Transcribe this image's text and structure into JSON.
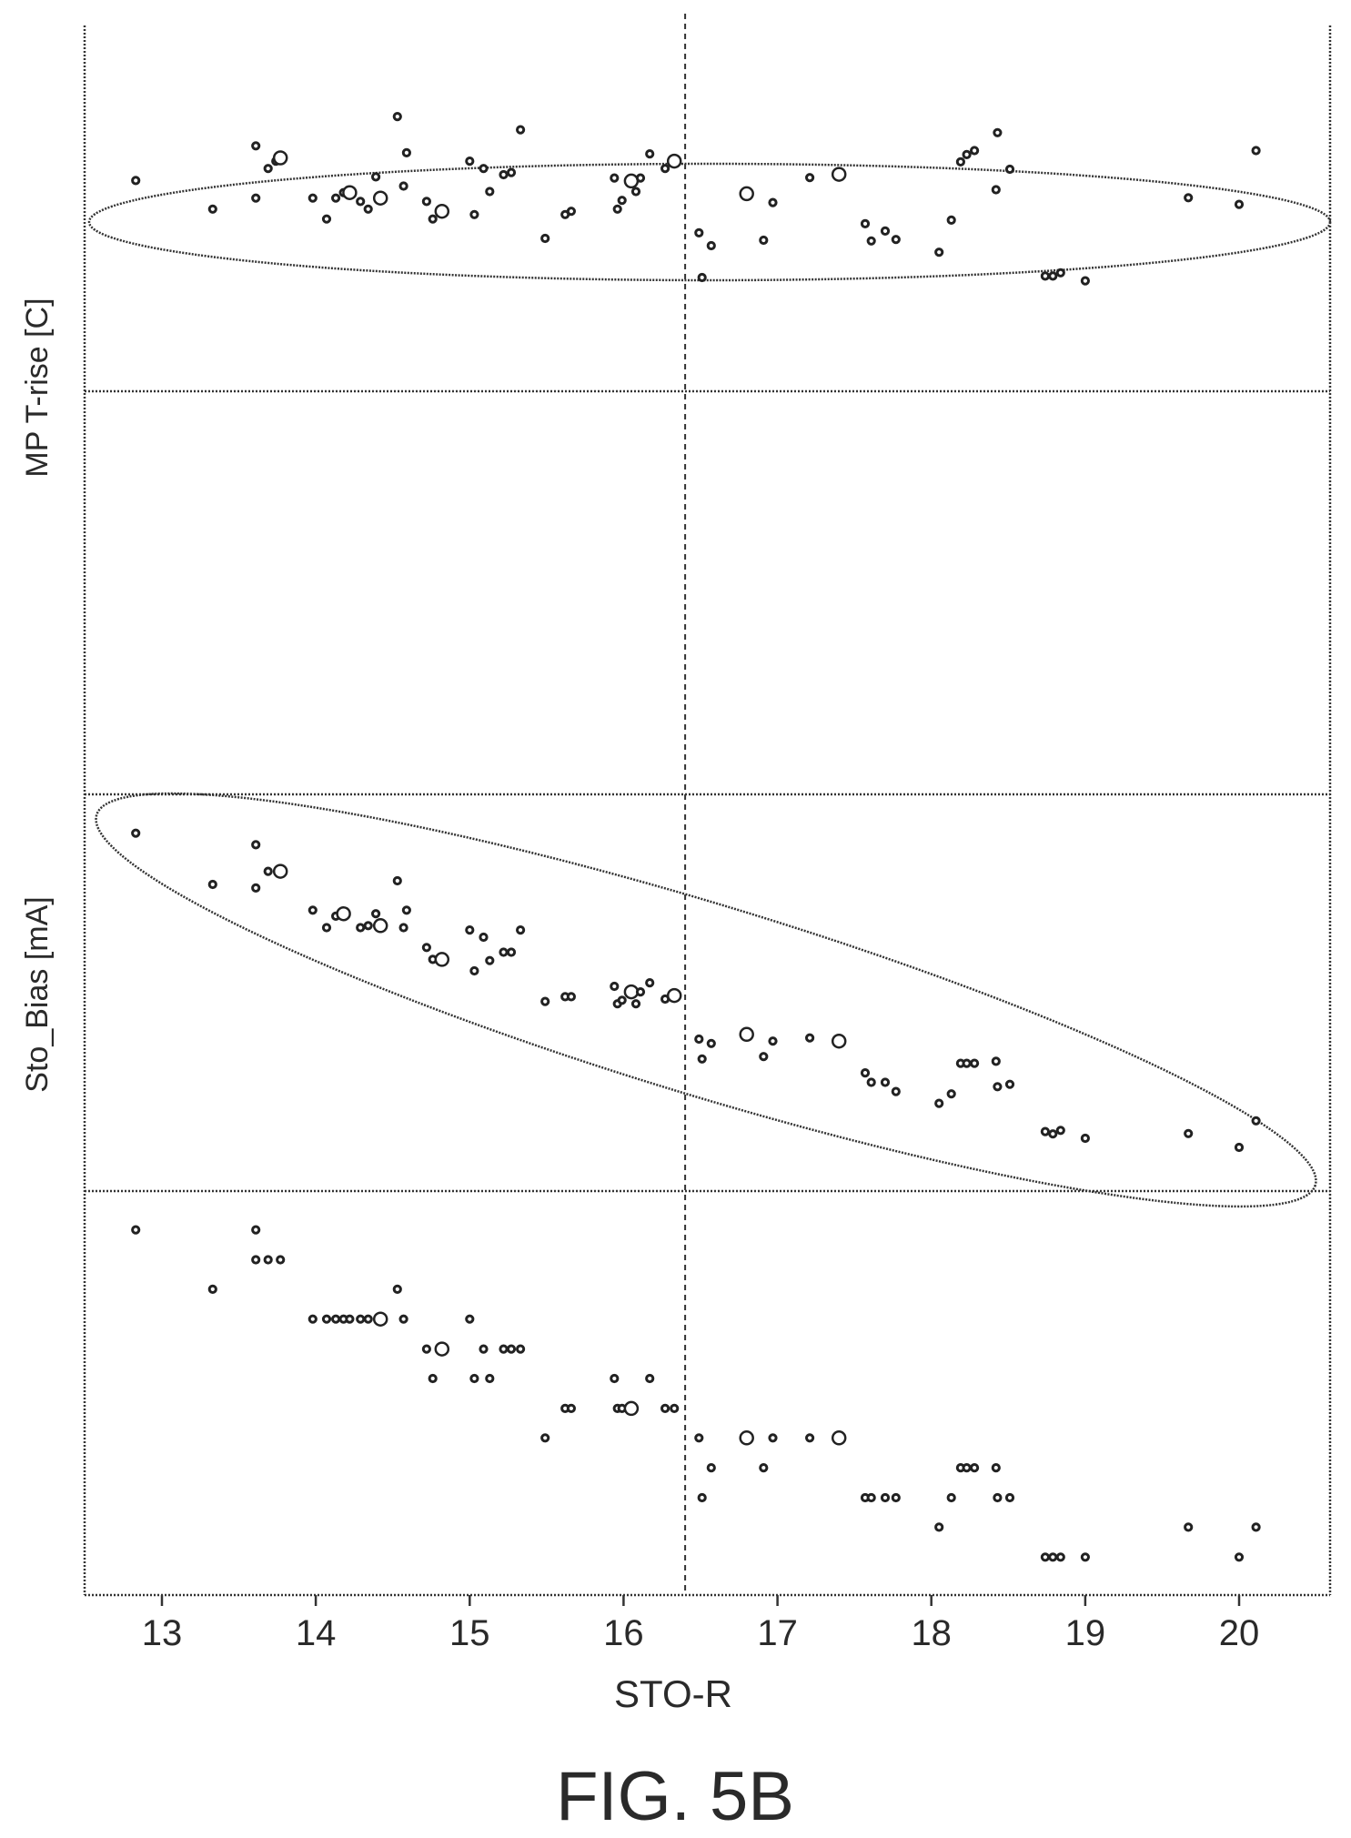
{
  "figure_label": "FIG. 5B",
  "chart_data": {
    "type": "scatter",
    "xlabel": "STO-R",
    "xlim": [
      12.5,
      20.6
    ],
    "xticks": [
      13,
      14,
      15,
      16,
      17,
      18,
      19,
      20
    ],
    "reference_line_x": 16.4,
    "panels": [
      {
        "id": "mp-trise",
        "ylabel": "MP T-rise [C]",
        "ylim": [
          0,
          1
        ],
        "points": [
          {
            "x": 12.83,
            "y": 0.576,
            "m": "s"
          },
          {
            "x": 13.33,
            "y": 0.498,
            "m": "s"
          },
          {
            "x": 13.61,
            "y": 0.671,
            "m": "s"
          },
          {
            "x": 13.61,
            "y": 0.528,
            "m": "s"
          },
          {
            "x": 13.69,
            "y": 0.609,
            "m": "s"
          },
          {
            "x": 13.74,
            "y": 0.629,
            "m": "s"
          },
          {
            "x": 13.77,
            "y": 0.638,
            "m": "b"
          },
          {
            "x": 13.98,
            "y": 0.528,
            "m": "s"
          },
          {
            "x": 14.07,
            "y": 0.471,
            "m": "s"
          },
          {
            "x": 14.13,
            "y": 0.528,
            "m": "s"
          },
          {
            "x": 14.18,
            "y": 0.543,
            "m": "s"
          },
          {
            "x": 14.22,
            "y": 0.543,
            "m": "b"
          },
          {
            "x": 14.29,
            "y": 0.519,
            "m": "s"
          },
          {
            "x": 14.34,
            "y": 0.498,
            "m": "s"
          },
          {
            "x": 14.39,
            "y": 0.586,
            "m": "s"
          },
          {
            "x": 14.42,
            "y": 0.528,
            "m": "b"
          },
          {
            "x": 14.53,
            "y": 0.751,
            "m": "s"
          },
          {
            "x": 14.57,
            "y": 0.561,
            "m": "s"
          },
          {
            "x": 14.59,
            "y": 0.652,
            "m": "s"
          },
          {
            "x": 14.72,
            "y": 0.519,
            "m": "s"
          },
          {
            "x": 14.76,
            "y": 0.471,
            "m": "s"
          },
          {
            "x": 14.82,
            "y": 0.492,
            "m": "b"
          },
          {
            "x": 15.0,
            "y": 0.629,
            "m": "s"
          },
          {
            "x": 15.03,
            "y": 0.483,
            "m": "s"
          },
          {
            "x": 15.09,
            "y": 0.609,
            "m": "s"
          },
          {
            "x": 15.13,
            "y": 0.546,
            "m": "s"
          },
          {
            "x": 15.22,
            "y": 0.592,
            "m": "s"
          },
          {
            "x": 15.27,
            "y": 0.598,
            "m": "s"
          },
          {
            "x": 15.33,
            "y": 0.715,
            "m": "s"
          },
          {
            "x": 15.49,
            "y": 0.418,
            "m": "s"
          },
          {
            "x": 15.62,
            "y": 0.483,
            "m": "s"
          },
          {
            "x": 15.66,
            "y": 0.492,
            "m": "s"
          },
          {
            "x": 15.94,
            "y": 0.583,
            "m": "s"
          },
          {
            "x": 15.96,
            "y": 0.498,
            "m": "s"
          },
          {
            "x": 15.99,
            "y": 0.522,
            "m": "s"
          },
          {
            "x": 16.05,
            "y": 0.575,
            "m": "b"
          },
          {
            "x": 16.08,
            "y": 0.546,
            "m": "s"
          },
          {
            "x": 16.11,
            "y": 0.583,
            "m": "s"
          },
          {
            "x": 16.17,
            "y": 0.649,
            "m": "s"
          },
          {
            "x": 16.27,
            "y": 0.609,
            "m": "s"
          },
          {
            "x": 16.33,
            "y": 0.629,
            "m": "b"
          },
          {
            "x": 16.49,
            "y": 0.433,
            "m": "s"
          },
          {
            "x": 16.51,
            "y": 0.311,
            "m": "s"
          },
          {
            "x": 16.57,
            "y": 0.398,
            "m": "s"
          },
          {
            "x": 16.8,
            "y": 0.54,
            "m": "b"
          },
          {
            "x": 16.91,
            "y": 0.413,
            "m": "s"
          },
          {
            "x": 16.97,
            "y": 0.516,
            "m": "s"
          },
          {
            "x": 17.21,
            "y": 0.584,
            "m": "s"
          },
          {
            "x": 17.4,
            "y": 0.593,
            "m": "b"
          },
          {
            "x": 17.57,
            "y": 0.458,
            "m": "s"
          },
          {
            "x": 17.61,
            "y": 0.411,
            "m": "s"
          },
          {
            "x": 17.7,
            "y": 0.438,
            "m": "s"
          },
          {
            "x": 17.77,
            "y": 0.415,
            "m": "s"
          },
          {
            "x": 18.05,
            "y": 0.38,
            "m": "s"
          },
          {
            "x": 18.13,
            "y": 0.468,
            "m": "s"
          },
          {
            "x": 18.19,
            "y": 0.627,
            "m": "s"
          },
          {
            "x": 18.23,
            "y": 0.647,
            "m": "s"
          },
          {
            "x": 18.28,
            "y": 0.658,
            "m": "s"
          },
          {
            "x": 18.42,
            "y": 0.551,
            "m": "s"
          },
          {
            "x": 18.43,
            "y": 0.707,
            "m": "s"
          },
          {
            "x": 18.51,
            "y": 0.607,
            "m": "s"
          },
          {
            "x": 18.74,
            "y": 0.315,
            "m": "s"
          },
          {
            "x": 18.79,
            "y": 0.315,
            "m": "s"
          },
          {
            "x": 18.84,
            "y": 0.324,
            "m": "s"
          },
          {
            "x": 19.0,
            "y": 0.302,
            "m": "s"
          },
          {
            "x": 19.67,
            "y": 0.529,
            "m": "s"
          },
          {
            "x": 20.0,
            "y": 0.511,
            "m": "s"
          },
          {
            "x": 20.11,
            "y": 0.658,
            "m": "s"
          }
        ]
      },
      {
        "id": "sto-bias",
        "ylabel": "Sto_Bias [mA]",
        "ylim": [
          0,
          1
        ],
        "points": [
          {
            "x": 12.83,
            "y": 0.902,
            "m": "s"
          },
          {
            "x": 13.33,
            "y": 0.773,
            "m": "s"
          },
          {
            "x": 13.61,
            "y": 0.873,
            "m": "s"
          },
          {
            "x": 13.61,
            "y": 0.764,
            "m": "s"
          },
          {
            "x": 13.69,
            "y": 0.806,
            "m": "s"
          },
          {
            "x": 13.77,
            "y": 0.806,
            "m": "b"
          },
          {
            "x": 13.98,
            "y": 0.708,
            "m": "s"
          },
          {
            "x": 14.07,
            "y": 0.664,
            "m": "s"
          },
          {
            "x": 14.13,
            "y": 0.693,
            "m": "s"
          },
          {
            "x": 14.18,
            "y": 0.699,
            "m": "b"
          },
          {
            "x": 14.29,
            "y": 0.664,
            "m": "s"
          },
          {
            "x": 14.34,
            "y": 0.669,
            "m": "s"
          },
          {
            "x": 14.39,
            "y": 0.699,
            "m": "s"
          },
          {
            "x": 14.42,
            "y": 0.669,
            "m": "b"
          },
          {
            "x": 14.53,
            "y": 0.782,
            "m": "s"
          },
          {
            "x": 14.57,
            "y": 0.664,
            "m": "s"
          },
          {
            "x": 14.59,
            "y": 0.708,
            "m": "s"
          },
          {
            "x": 14.72,
            "y": 0.614,
            "m": "s"
          },
          {
            "x": 14.76,
            "y": 0.584,
            "m": "s"
          },
          {
            "x": 14.82,
            "y": 0.584,
            "m": "b"
          },
          {
            "x": 15.0,
            "y": 0.658,
            "m": "s"
          },
          {
            "x": 15.03,
            "y": 0.555,
            "m": "s"
          },
          {
            "x": 15.09,
            "y": 0.64,
            "m": "s"
          },
          {
            "x": 15.13,
            "y": 0.581,
            "m": "s"
          },
          {
            "x": 15.22,
            "y": 0.602,
            "m": "s"
          },
          {
            "x": 15.27,
            "y": 0.602,
            "m": "s"
          },
          {
            "x": 15.33,
            "y": 0.658,
            "m": "s"
          },
          {
            "x": 15.49,
            "y": 0.478,
            "m": "s"
          },
          {
            "x": 15.62,
            "y": 0.49,
            "m": "s"
          },
          {
            "x": 15.66,
            "y": 0.49,
            "m": "s"
          },
          {
            "x": 15.94,
            "y": 0.516,
            "m": "s"
          },
          {
            "x": 15.96,
            "y": 0.472,
            "m": "s"
          },
          {
            "x": 15.99,
            "y": 0.481,
            "m": "s"
          },
          {
            "x": 16.05,
            "y": 0.502,
            "m": "b"
          },
          {
            "x": 16.08,
            "y": 0.472,
            "m": "s"
          },
          {
            "x": 16.11,
            "y": 0.502,
            "m": "s"
          },
          {
            "x": 16.17,
            "y": 0.525,
            "m": "s"
          },
          {
            "x": 16.27,
            "y": 0.484,
            "m": "s"
          },
          {
            "x": 16.33,
            "y": 0.493,
            "m": "b"
          },
          {
            "x": 16.49,
            "y": 0.383,
            "m": "s"
          },
          {
            "x": 16.51,
            "y": 0.333,
            "m": "s"
          },
          {
            "x": 16.57,
            "y": 0.372,
            "m": "s"
          },
          {
            "x": 16.8,
            "y": 0.395,
            "m": "b"
          },
          {
            "x": 16.91,
            "y": 0.339,
            "m": "s"
          },
          {
            "x": 16.97,
            "y": 0.378,
            "m": "s"
          },
          {
            "x": 17.21,
            "y": 0.386,
            "m": "s"
          },
          {
            "x": 17.4,
            "y": 0.378,
            "m": "b"
          },
          {
            "x": 17.57,
            "y": 0.298,
            "m": "s"
          },
          {
            "x": 17.61,
            "y": 0.274,
            "m": "s"
          },
          {
            "x": 17.7,
            "y": 0.274,
            "m": "s"
          },
          {
            "x": 17.77,
            "y": 0.251,
            "m": "s"
          },
          {
            "x": 18.05,
            "y": 0.221,
            "m": "s"
          },
          {
            "x": 18.13,
            "y": 0.245,
            "m": "s"
          },
          {
            "x": 18.19,
            "y": 0.322,
            "m": "s"
          },
          {
            "x": 18.23,
            "y": 0.322,
            "m": "s"
          },
          {
            "x": 18.28,
            "y": 0.322,
            "m": "s"
          },
          {
            "x": 18.42,
            "y": 0.327,
            "m": "s"
          },
          {
            "x": 18.43,
            "y": 0.263,
            "m": "s"
          },
          {
            "x": 18.51,
            "y": 0.269,
            "m": "s"
          },
          {
            "x": 18.74,
            "y": 0.15,
            "m": "s"
          },
          {
            "x": 18.79,
            "y": 0.144,
            "m": "s"
          },
          {
            "x": 18.84,
            "y": 0.153,
            "m": "s"
          },
          {
            "x": 19.0,
            "y": 0.133,
            "m": "s"
          },
          {
            "x": 19.67,
            "y": 0.145,
            "m": "s"
          },
          {
            "x": 20.0,
            "y": 0.11,
            "m": "s"
          },
          {
            "x": 20.11,
            "y": 0.177,
            "m": "s"
          }
        ]
      },
      {
        "id": "bottom",
        "ylabel": "",
        "ylim": [
          0,
          1
        ],
        "points": [
          {
            "x": 12.83,
            "y": 0.904,
            "m": "s"
          },
          {
            "x": 13.33,
            "y": 0.757,
            "m": "s"
          },
          {
            "x": 13.61,
            "y": 0.904,
            "m": "s"
          },
          {
            "x": 13.61,
            "y": 0.83,
            "m": "s"
          },
          {
            "x": 13.69,
            "y": 0.83,
            "m": "s"
          },
          {
            "x": 13.77,
            "y": 0.83,
            "m": "s"
          },
          {
            "x": 13.98,
            "y": 0.683,
            "m": "s"
          },
          {
            "x": 14.07,
            "y": 0.683,
            "m": "s"
          },
          {
            "x": 14.13,
            "y": 0.683,
            "m": "s"
          },
          {
            "x": 14.18,
            "y": 0.683,
            "m": "s"
          },
          {
            "x": 14.22,
            "y": 0.683,
            "m": "s"
          },
          {
            "x": 14.29,
            "y": 0.683,
            "m": "s"
          },
          {
            "x": 14.34,
            "y": 0.683,
            "m": "s"
          },
          {
            "x": 14.42,
            "y": 0.683,
            "m": "b"
          },
          {
            "x": 14.53,
            "y": 0.757,
            "m": "s"
          },
          {
            "x": 14.57,
            "y": 0.683,
            "m": "s"
          },
          {
            "x": 14.72,
            "y": 0.609,
            "m": "s"
          },
          {
            "x": 14.76,
            "y": 0.536,
            "m": "s"
          },
          {
            "x": 14.82,
            "y": 0.609,
            "m": "b"
          },
          {
            "x": 15.0,
            "y": 0.683,
            "m": "s"
          },
          {
            "x": 15.03,
            "y": 0.536,
            "m": "s"
          },
          {
            "x": 15.09,
            "y": 0.609,
            "m": "s"
          },
          {
            "x": 15.13,
            "y": 0.536,
            "m": "s"
          },
          {
            "x": 15.22,
            "y": 0.609,
            "m": "s"
          },
          {
            "x": 15.27,
            "y": 0.609,
            "m": "s"
          },
          {
            "x": 15.33,
            "y": 0.609,
            "m": "s"
          },
          {
            "x": 15.49,
            "y": 0.389,
            "m": "s"
          },
          {
            "x": 15.62,
            "y": 0.462,
            "m": "s"
          },
          {
            "x": 15.66,
            "y": 0.462,
            "m": "s"
          },
          {
            "x": 15.94,
            "y": 0.536,
            "m": "s"
          },
          {
            "x": 15.96,
            "y": 0.462,
            "m": "s"
          },
          {
            "x": 15.99,
            "y": 0.462,
            "m": "s"
          },
          {
            "x": 16.05,
            "y": 0.462,
            "m": "b"
          },
          {
            "x": 16.17,
            "y": 0.536,
            "m": "s"
          },
          {
            "x": 16.27,
            "y": 0.462,
            "m": "s"
          },
          {
            "x": 16.33,
            "y": 0.462,
            "m": "s"
          },
          {
            "x": 16.49,
            "y": 0.389,
            "m": "s"
          },
          {
            "x": 16.51,
            "y": 0.241,
            "m": "s"
          },
          {
            "x": 16.57,
            "y": 0.315,
            "m": "s"
          },
          {
            "x": 16.8,
            "y": 0.389,
            "m": "b"
          },
          {
            "x": 16.91,
            "y": 0.315,
            "m": "s"
          },
          {
            "x": 16.97,
            "y": 0.389,
            "m": "s"
          },
          {
            "x": 17.21,
            "y": 0.389,
            "m": "s"
          },
          {
            "x": 17.4,
            "y": 0.389,
            "m": "b"
          },
          {
            "x": 17.57,
            "y": 0.241,
            "m": "s"
          },
          {
            "x": 17.61,
            "y": 0.241,
            "m": "s"
          },
          {
            "x": 17.7,
            "y": 0.241,
            "m": "s"
          },
          {
            "x": 17.77,
            "y": 0.241,
            "m": "s"
          },
          {
            "x": 18.05,
            "y": 0.168,
            "m": "s"
          },
          {
            "x": 18.13,
            "y": 0.241,
            "m": "s"
          },
          {
            "x": 18.19,
            "y": 0.315,
            "m": "s"
          },
          {
            "x": 18.23,
            "y": 0.315,
            "m": "s"
          },
          {
            "x": 18.28,
            "y": 0.315,
            "m": "s"
          },
          {
            "x": 18.42,
            "y": 0.315,
            "m": "s"
          },
          {
            "x": 18.43,
            "y": 0.241,
            "m": "s"
          },
          {
            "x": 18.51,
            "y": 0.241,
            "m": "s"
          },
          {
            "x": 18.74,
            "y": 0.094,
            "m": "s"
          },
          {
            "x": 18.79,
            "y": 0.094,
            "m": "s"
          },
          {
            "x": 18.84,
            "y": 0.094,
            "m": "s"
          },
          {
            "x": 19.0,
            "y": 0.094,
            "m": "s"
          },
          {
            "x": 19.67,
            "y": 0.168,
            "m": "s"
          },
          {
            "x": 20.0,
            "y": 0.094,
            "m": "s"
          },
          {
            "x": 20.11,
            "y": 0.168,
            "m": "s"
          }
        ]
      }
    ]
  }
}
